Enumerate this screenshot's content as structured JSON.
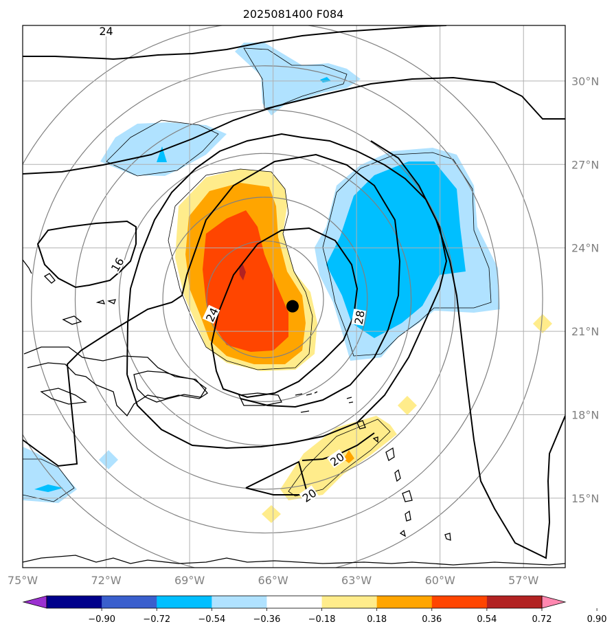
{
  "chart_data": {
    "type": "contour-map",
    "title": "2025081400 F084",
    "lon_range": [
      -75,
      -55.5
    ],
    "lat_range": [
      12.5,
      32
    ],
    "grid": true,
    "x_ticks": [
      {
        "value": -75,
        "label": "75°W"
      },
      {
        "value": -72,
        "label": "72°W"
      },
      {
        "value": -69,
        "label": "69°W"
      },
      {
        "value": -66,
        "label": "66°W"
      },
      {
        "value": -63,
        "label": "63°W"
      },
      {
        "value": -60,
        "label": "60°W"
      },
      {
        "value": -57,
        "label": "57°W"
      }
    ],
    "y_ticks": [
      {
        "value": 30,
        "label": "30°N"
      },
      {
        "value": 27,
        "label": "27°N"
      },
      {
        "value": 24,
        "label": "24°N"
      },
      {
        "value": 21,
        "label": "21°N"
      },
      {
        "value": 18,
        "label": "18°N"
      },
      {
        "value": 15,
        "label": "15°N"
      }
    ],
    "storm_center": {
      "lon": -65.3,
      "lat": 21.9
    },
    "colorbar": {
      "position": "bottom",
      "tick_labels": [
        "−0.90",
        "−0.72",
        "−0.54",
        "−0.36",
        "−0.18",
        "0.18",
        "0.36",
        "0.54",
        "0.72",
        "0.90"
      ],
      "colors": [
        "#9b30d0",
        "#00008b",
        "#3a5fcd",
        "#00bfff",
        "#b0e2ff",
        "#ffffff",
        "#ffec8b",
        "#ffa500",
        "#ff4500",
        "#b22222",
        "#ff88b0"
      ]
    },
    "contour_labels": [
      {
        "text": "24",
        "lon": -72.0,
        "lat": 31.8,
        "angle": 0
      },
      {
        "text": "16",
        "lon": -71.6,
        "lat": 23.4,
        "angle": -60
      },
      {
        "text": "24",
        "lon": -68.2,
        "lat": 21.6,
        "angle": -65
      },
      {
        "text": "28",
        "lon": -62.9,
        "lat": 21.5,
        "angle": -80
      },
      {
        "text": "20",
        "lon": -63.7,
        "lat": 16.4,
        "angle": -35
      },
      {
        "text": "20",
        "lon": -64.7,
        "lat": 15.1,
        "angle": -35
      }
    ],
    "range_rings_deg": [
      2,
      3.5,
      5,
      6.5,
      8,
      9.5
    ]
  }
}
